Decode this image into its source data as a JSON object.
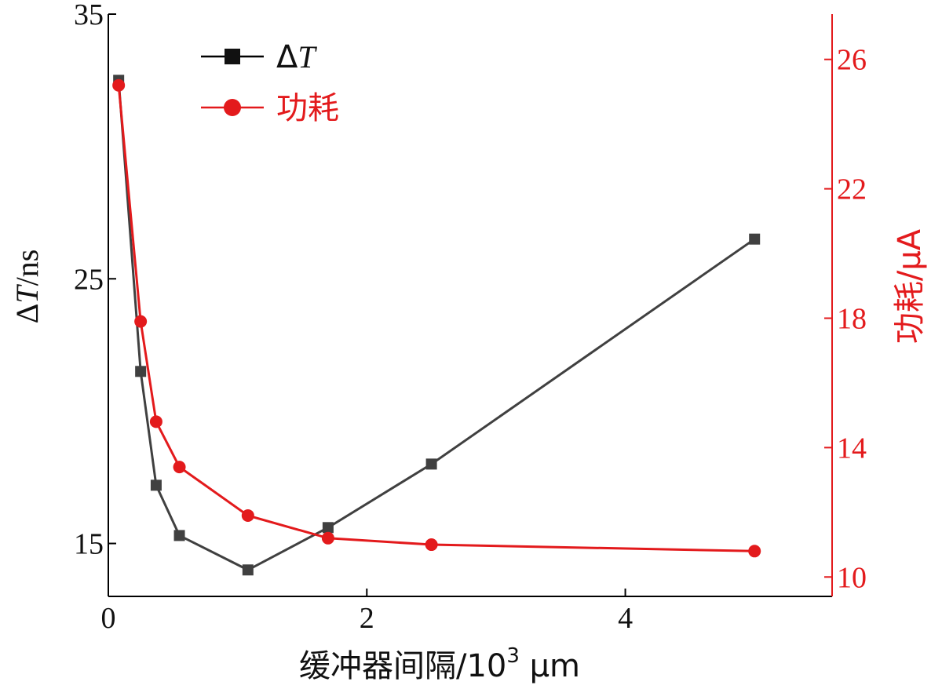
{
  "chart_data": {
    "type": "line",
    "x_ticks": [
      "0",
      "2",
      "4"
    ],
    "y_left_ticks": [
      "15",
      "25",
      "35"
    ],
    "y_right_ticks": [
      "10",
      "14",
      "18",
      "22",
      "26"
    ],
    "xlim": [
      0,
      5.6
    ],
    "ylim_left": [
      13,
      35
    ],
    "ylim_right": [
      9.4,
      27.4
    ],
    "xlabel": {
      "prefix": "缓冲器间隔/10",
      "sup": "3",
      "suffix": " μm"
    },
    "ylabel_left": {
      "delta": "Δ",
      "var": "T",
      "unit": "/ns"
    },
    "ylabel_right": {
      "text": "功耗/μA"
    },
    "legend_position": "top-left",
    "series": [
      {
        "name": "ΔT",
        "legend_delta": "Δ",
        "legend_var": "T",
        "axis": "left",
        "color": "#404040",
        "marker": "square",
        "x": [
          0.08,
          0.25,
          0.37,
          0.55,
          1.08,
          1.7,
          2.5,
          5.0
        ],
        "y": [
          32.5,
          21.5,
          17.2,
          15.3,
          14.0,
          15.6,
          18.0,
          26.5
        ]
      },
      {
        "name": "功耗",
        "axis": "right",
        "color": "#e31a1c",
        "marker": "circle",
        "x": [
          0.08,
          0.25,
          0.37,
          0.55,
          1.08,
          1.7,
          2.5,
          5.0
        ],
        "y": [
          25.2,
          17.9,
          14.8,
          13.4,
          11.9,
          11.2,
          11.0,
          10.8
        ]
      }
    ]
  }
}
